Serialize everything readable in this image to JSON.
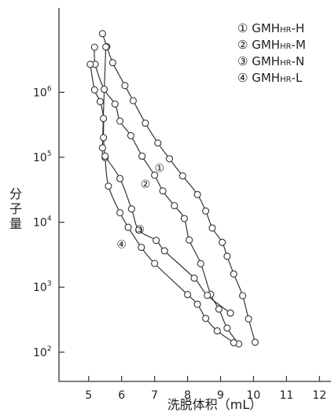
{
  "chart_data": {
    "type": "line",
    "xlabel": "洗脱体积（mL）",
    "ylabel": "分子量",
    "x_ticks": [
      5,
      6,
      7,
      8,
      9,
      10,
      11,
      12
    ],
    "xlim": [
      4.1,
      12.35
    ],
    "ylim_log10": [
      1.55,
      7.3
    ],
    "y_ticks": [
      {
        "base": "10",
        "exp": "2",
        "value": 100
      },
      {
        "base": "10",
        "exp": "3",
        "value": 1000
      },
      {
        "base": "10",
        "exp": "4",
        "value": 10000
      },
      {
        "base": "10",
        "exp": "5",
        "value": 100000
      },
      {
        "base": "10",
        "exp": "6",
        "value": 1000000
      }
    ],
    "legend_position": "top-right",
    "series": [
      {
        "name": "GMHHR-H",
        "prefix": "GMH",
        "sub": "HR",
        "suffix": "-H",
        "marker": "①",
        "points": [
          [
            5.42,
            8000000
          ],
          [
            5.55,
            5050000
          ],
          [
            5.73,
            2860000
          ],
          [
            6.1,
            1270000
          ],
          [
            6.35,
            745000
          ],
          [
            6.72,
            335000
          ],
          [
            7.1,
            166000
          ],
          [
            7.45,
            94800
          ],
          [
            7.85,
            51600
          ],
          [
            8.3,
            26700
          ],
          [
            8.55,
            14900
          ],
          [
            8.75,
            8150
          ],
          [
            9.05,
            4900
          ],
          [
            9.2,
            2990
          ],
          [
            9.4,
            1600
          ],
          [
            9.67,
            740
          ],
          [
            9.85,
            325
          ],
          [
            10.05,
            142
          ]
        ],
        "marker_label_at": [
          7.15,
          71000
        ]
      },
      {
        "name": "GMHHR-M",
        "prefix": "GMH",
        "sub": "HR",
        "suffix": "-M",
        "marker": "②",
        "points": [
          [
            5.18,
            4950000
          ],
          [
            5.2,
            2700000
          ],
          [
            5.47,
            1110000
          ],
          [
            5.8,
            660000
          ],
          [
            5.95,
            360000
          ],
          [
            6.28,
            216000
          ],
          [
            6.62,
            104000
          ],
          [
            7.0,
            53000
          ],
          [
            7.25,
            30300
          ],
          [
            7.6,
            18000
          ],
          [
            7.9,
            11400
          ],
          [
            8.05,
            5330
          ],
          [
            8.4,
            2310
          ],
          [
            8.7,
            777
          ],
          [
            8.95,
            460
          ],
          [
            9.2,
            235
          ],
          [
            9.55,
            134
          ]
        ],
        "marker_label_at": [
          6.72,
          40000
        ]
      },
      {
        "name": "GMHHR-N",
        "prefix": "GMH",
        "sub": "HR",
        "suffix": "-N",
        "marker": "③",
        "points": [
          [
            5.05,
            2700000
          ],
          [
            5.18,
            1090000
          ],
          [
            5.35,
            720000
          ],
          [
            5.45,
            395000
          ],
          [
            5.45,
            200000
          ],
          [
            5.5,
            99000
          ],
          [
            5.6,
            36000
          ],
          [
            5.95,
            14000
          ],
          [
            6.2,
            8350
          ],
          [
            6.6,
            4100
          ],
          [
            7.0,
            2320
          ],
          [
            8.0,
            769
          ],
          [
            8.3,
            547
          ],
          [
            8.55,
            331
          ],
          [
            8.9,
            213
          ],
          [
            9.4,
            140
          ]
        ],
        "marker_label_at": [
          6.55,
          8000
        ]
      },
      {
        "name": "GMHHR-L",
        "prefix": "GMH",
        "sub": "HR",
        "suffix": "-L",
        "marker": "④",
        "points": [
          [
            5.52,
            5000000
          ],
          [
            5.42,
            140000
          ],
          [
            5.5,
            104000
          ],
          [
            5.95,
            47000
          ],
          [
            6.3,
            16000
          ],
          [
            6.52,
            7600
          ],
          [
            7.05,
            5250
          ],
          [
            7.3,
            3640
          ],
          [
            8.2,
            1380
          ],
          [
            8.6,
            750
          ],
          [
            9.3,
            400
          ]
        ],
        "marker_label_at": [
          6.0,
          4700
        ]
      }
    ]
  }
}
